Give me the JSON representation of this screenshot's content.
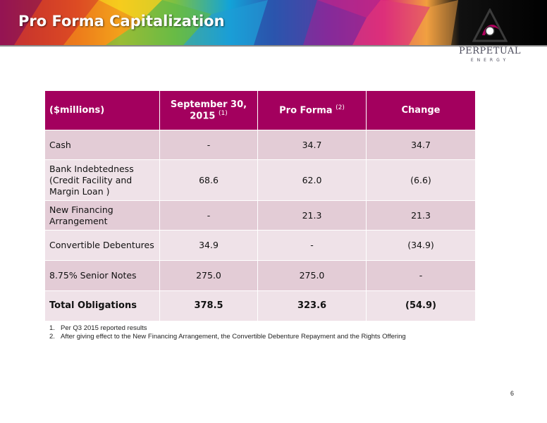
{
  "header": {
    "title": "Pro Forma Capitalization",
    "logo_name": "PERPETUAL",
    "logo_sub": "ENERGY"
  },
  "table": {
    "columns": [
      {
        "label": "($millions)",
        "sup": ""
      },
      {
        "label": "September 30, 2015",
        "sup": "(1)"
      },
      {
        "label": "Pro Forma",
        "sup": "(2)"
      },
      {
        "label": "Change",
        "sup": ""
      }
    ],
    "rows": [
      {
        "label": "Cash",
        "september": "-",
        "pro_forma": "34.7",
        "change": "34.7"
      },
      {
        "label": "Bank Indebtedness (Credit Facility and Margin Loan )",
        "september": "68.6",
        "pro_forma": "62.0",
        "change": "(6.6)"
      },
      {
        "label": "New Financing Arrangement",
        "september": "-",
        "pro_forma": "21.3",
        "change": "21.3"
      },
      {
        "label": "Convertible Debentures",
        "september": "34.9",
        "pro_forma": "-",
        "change": "(34.9)"
      },
      {
        "label": "8.75% Senior Notes",
        "september": "275.0",
        "pro_forma": "275.0",
        "change": "-"
      },
      {
        "label": "Total Obligations",
        "september": "378.5",
        "pro_forma": "323.6",
        "change": "(54.9)"
      }
    ]
  },
  "notes": [
    {
      "num": "1.",
      "text": "Per Q3 2015 reported results"
    },
    {
      "num": "2.",
      "text": "After giving effect to the New Financing Arrangement, the Convertible Debenture Repayment and the Rights Offering"
    }
  ],
  "page_number": "6",
  "colors": {
    "header_fill": "#a3005e",
    "row_dark": "#e3ccd6",
    "row_light": "#efe2e8"
  }
}
